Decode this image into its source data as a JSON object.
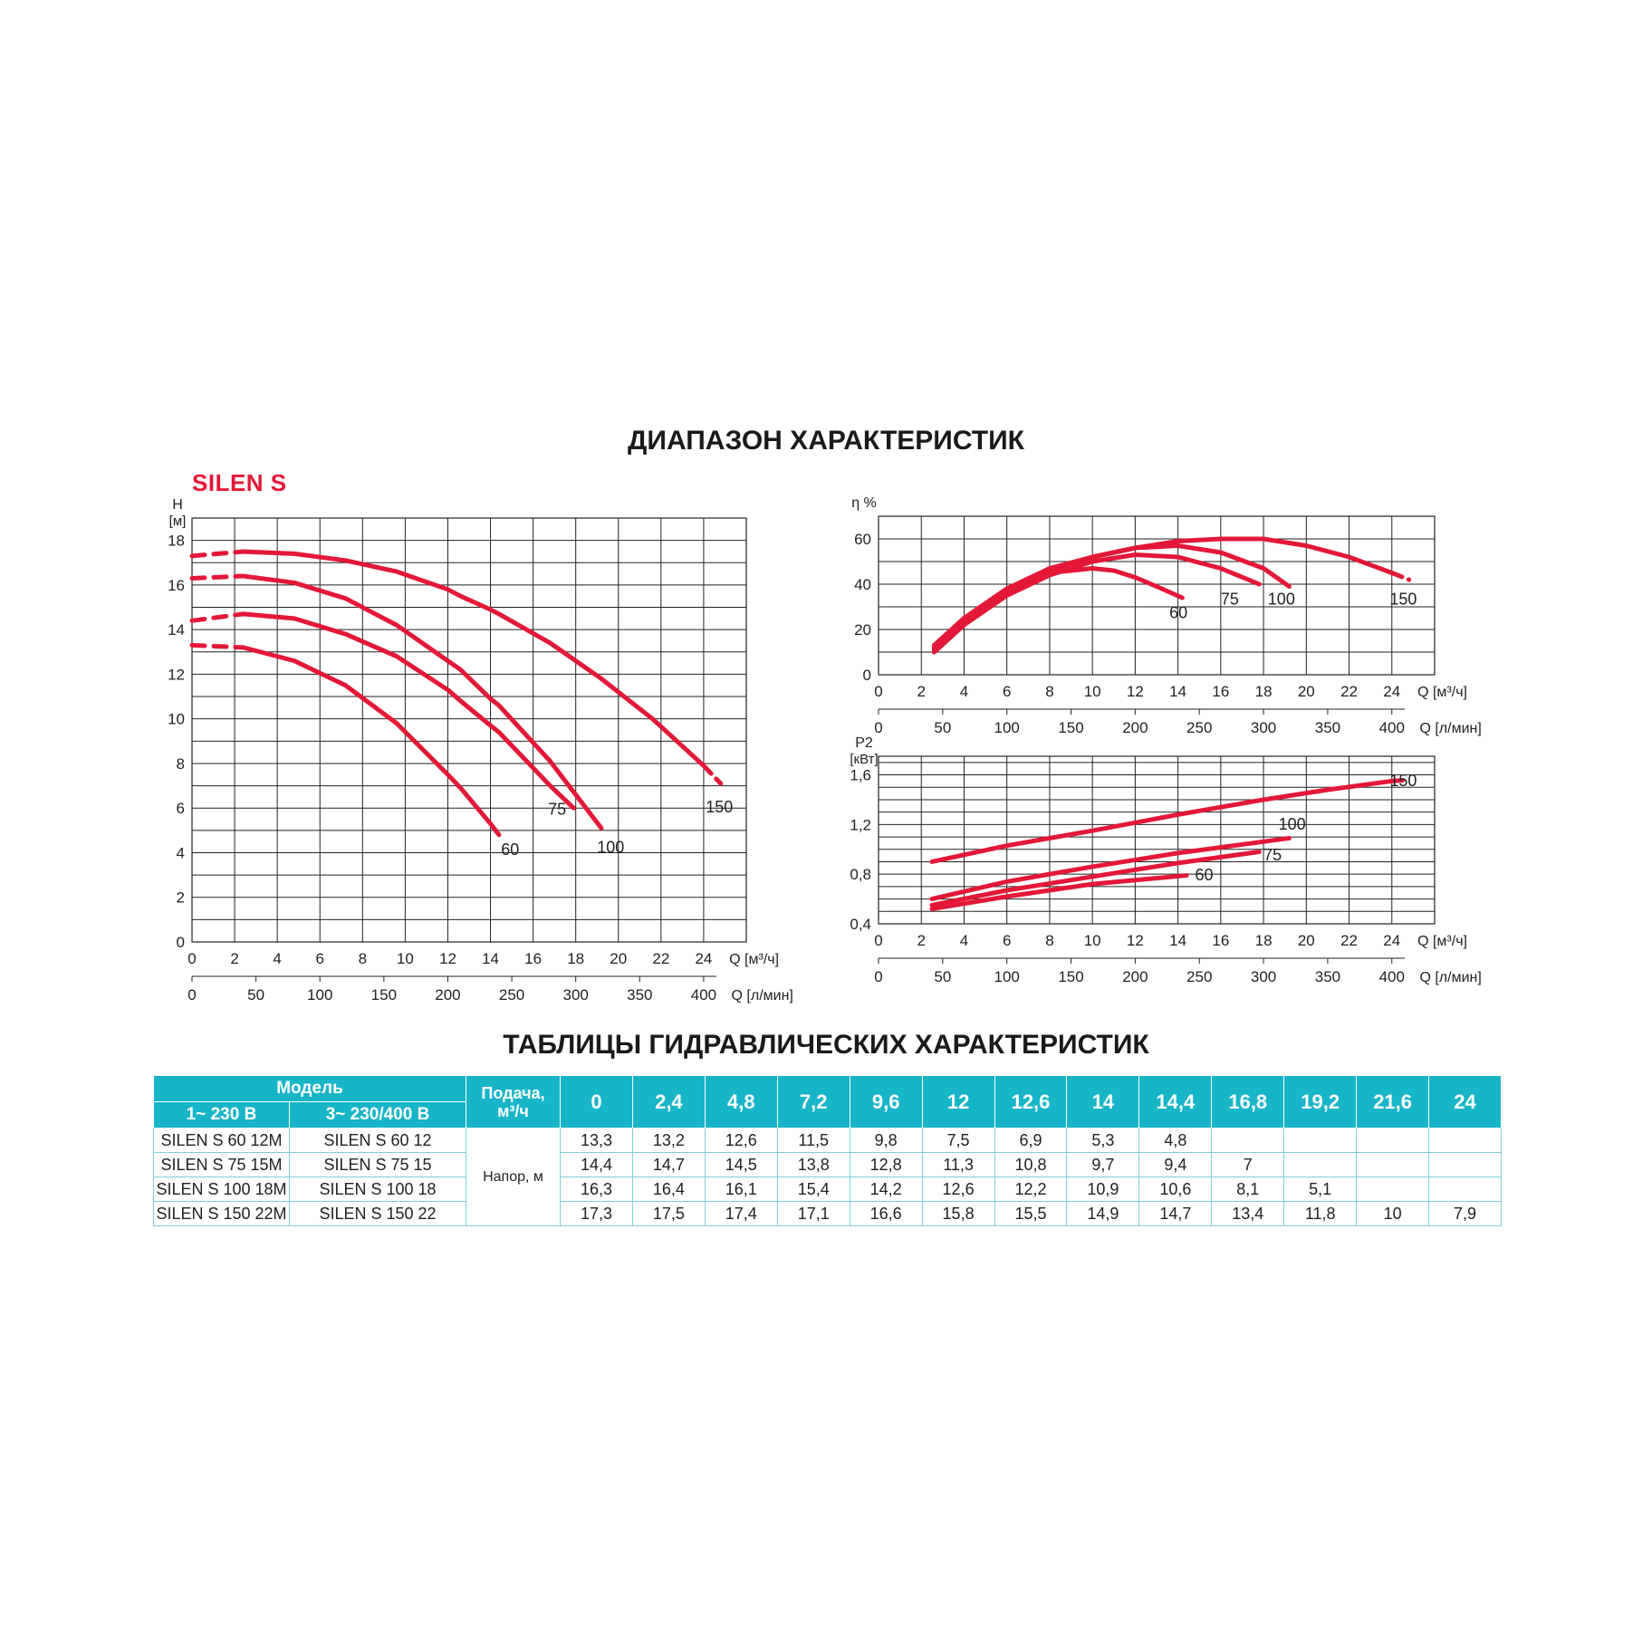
{
  "page": {
    "title_range": "ДИАПАЗОН ХАРАКТЕРИСТИК",
    "brand": "SILEN S",
    "title_table": "ТАБЛИЦЫ ГИДРАВЛИЧЕСКИХ ХАРАКТЕРИСТИК"
  },
  "colors": {
    "curve": "#e31837",
    "accent": "#17b5c8",
    "grid": "#222222"
  },
  "chart_data": [
    {
      "id": "head",
      "type": "line",
      "ylabel": "H",
      "yunit": "[м]",
      "xlabel": "Q [м³/ч]",
      "x2label": "Q [л/мин]",
      "xlim": [
        0,
        26
      ],
      "ylim": [
        0,
        19
      ],
      "xticks": [
        0,
        2,
        4,
        6,
        8,
        10,
        12,
        14,
        16,
        18,
        20,
        22,
        24
      ],
      "yticks": [
        0,
        2,
        4,
        6,
        8,
        10,
        12,
        14,
        16,
        18
      ],
      "x2ticks": [
        0,
        50,
        100,
        150,
        200,
        250,
        300,
        350,
        400
      ],
      "grid": true,
      "series": [
        {
          "name": "60",
          "dashed_to": 2.4,
          "x": [
            0,
            2.4,
            4.8,
            7.2,
            9.6,
            12,
            12.6,
            14,
            14.4
          ],
          "y": [
            13.3,
            13.2,
            12.6,
            11.5,
            9.8,
            7.5,
            6.9,
            5.3,
            4.8
          ],
          "label_at": [
            14.5,
            3.9
          ]
        },
        {
          "name": "75",
          "dashed_to": 2.4,
          "x": [
            0,
            2.4,
            4.8,
            7.2,
            9.6,
            12,
            12.6,
            14,
            14.4,
            16.8,
            17.9
          ],
          "y": [
            14.4,
            14.7,
            14.5,
            13.8,
            12.8,
            11.3,
            10.8,
            9.7,
            9.4,
            7,
            6.0
          ],
          "label_at": [
            16.7,
            5.7
          ]
        },
        {
          "name": "100",
          "dashed_to": 2.4,
          "x": [
            0,
            2.4,
            4.8,
            7.2,
            9.6,
            12,
            12.6,
            14,
            14.4,
            16.8,
            19.2
          ],
          "y": [
            16.3,
            16.4,
            16.1,
            15.4,
            14.2,
            12.6,
            12.2,
            10.9,
            10.6,
            8.1,
            5.1
          ],
          "label_at": [
            19.0,
            4.0
          ]
        },
        {
          "name": "150",
          "dashed_to": 2.4,
          "x": [
            0,
            2.4,
            4.8,
            7.2,
            9.6,
            12,
            12.6,
            14,
            14.4,
            16.8,
            19.2,
            21.6,
            24
          ],
          "y": [
            17.3,
            17.5,
            17.4,
            17.1,
            16.6,
            15.8,
            15.5,
            14.9,
            14.7,
            13.4,
            11.8,
            10,
            7.9
          ],
          "dashed_from": 24,
          "y_end": 7.1,
          "x_end": 24.8,
          "label_at": [
            24.1,
            5.8
          ]
        }
      ]
    },
    {
      "id": "efficiency",
      "type": "line",
      "ylabel": "η %",
      "xlabel": "Q [м³/ч]",
      "x2label": "Q [л/мин]",
      "xlim": [
        0,
        26
      ],
      "ylim": [
        0,
        70
      ],
      "xticks": [
        0,
        2,
        4,
        6,
        8,
        10,
        12,
        14,
        16,
        18,
        20,
        22,
        24
      ],
      "yticks": [
        0,
        20,
        40,
        60
      ],
      "x2ticks": [
        0,
        50,
        100,
        150,
        200,
        250,
        300,
        350,
        400
      ],
      "grid": true,
      "series": [
        {
          "name": "60",
          "x": [
            2.6,
            4,
            6,
            8,
            10,
            11,
            12,
            13,
            14.2
          ],
          "y": [
            12,
            25,
            38,
            45,
            47,
            46,
            43,
            39,
            34
          ],
          "label_at": [
            13.6,
            25
          ]
        },
        {
          "name": "75",
          "x": [
            2.6,
            4,
            6,
            8,
            10,
            12,
            14,
            16,
            17.8
          ],
          "y": [
            10,
            22,
            35,
            44,
            50,
            53,
            52,
            47,
            40
          ],
          "label_at": [
            16.0,
            31
          ]
        },
        {
          "name": "100",
          "x": [
            2.6,
            4,
            6,
            8,
            10,
            12,
            14,
            16,
            18,
            19.2
          ],
          "y": [
            11,
            23,
            36,
            46,
            52,
            56,
            57,
            54,
            47,
            39
          ],
          "label_at": [
            18.2,
            31
          ]
        },
        {
          "name": "150",
          "x": [
            2.6,
            4,
            6,
            8,
            10,
            12,
            14,
            16,
            18,
            20,
            22,
            24,
            24.8
          ],
          "y": [
            13,
            25,
            38,
            47,
            52,
            56,
            59,
            60,
            60,
            57,
            52,
            45,
            42
          ],
          "dashed_from": 24,
          "label_at": [
            23.9,
            31
          ]
        }
      ]
    },
    {
      "id": "power",
      "type": "line",
      "ylabel": "P2",
      "yunit": "[кВт]",
      "xlabel": "Q [м³/ч]",
      "x2label": "Q [л/мин]",
      "xlim": [
        0,
        26
      ],
      "ylim": [
        0.4,
        1.75
      ],
      "xticks": [
        0,
        2,
        4,
        6,
        8,
        10,
        12,
        14,
        16,
        18,
        20,
        22,
        24
      ],
      "yticks": [
        0.4,
        0.8,
        1.2,
        1.6
      ],
      "ytick_labels": [
        "0,4",
        "0,8",
        "1,2",
        "1,6"
      ],
      "x2ticks": [
        0,
        50,
        100,
        150,
        200,
        250,
        300,
        350,
        400
      ],
      "grid": true,
      "series": [
        {
          "name": "60",
          "x": [
            2.5,
            6,
            10,
            14.4
          ],
          "y": [
            0.52,
            0.62,
            0.72,
            0.79
          ],
          "label_at": [
            14.8,
            0.75
          ]
        },
        {
          "name": "75",
          "x": [
            2.5,
            6,
            10,
            14,
            17.8
          ],
          "y": [
            0.55,
            0.67,
            0.78,
            0.89,
            0.98
          ],
          "label_at": [
            18.0,
            0.91
          ]
        },
        {
          "name": "100",
          "x": [
            2.5,
            6,
            10,
            14,
            19.2
          ],
          "y": [
            0.6,
            0.74,
            0.86,
            0.97,
            1.09
          ],
          "label_at": [
            18.7,
            1.16
          ]
        },
        {
          "name": "150",
          "x": [
            2.5,
            6,
            10,
            14,
            18,
            21,
            24,
            24.8
          ],
          "y": [
            0.9,
            1.03,
            1.15,
            1.28,
            1.4,
            1.48,
            1.55,
            1.56
          ],
          "dashed_from": 24,
          "label_at": [
            23.9,
            1.51
          ]
        }
      ]
    }
  ],
  "table": {
    "model_header": "Модель",
    "col_1ph": "1~ 230 В",
    "col_3ph": "3~ 230/400 В",
    "feed_header_1": "Подача,",
    "feed_header_2": "м³/ч",
    "row_label": "Напор, м",
    "flows": [
      "0",
      "2,4",
      "4,8",
      "7,2",
      "9,6",
      "12",
      "12,6",
      "14",
      "14,4",
      "16,8",
      "19,2",
      "21,6",
      "24"
    ],
    "rows": [
      {
        "m1": "SILEN S 60 12M",
        "m3": "SILEN S 60 12",
        "values": [
          "13,3",
          "13,2",
          "12,6",
          "11,5",
          "9,8",
          "7,5",
          "6,9",
          "5,3",
          "4,8",
          "",
          "",
          "",
          ""
        ]
      },
      {
        "m1": "SILEN S 75 15M",
        "m3": "SILEN S 75 15",
        "values": [
          "14,4",
          "14,7",
          "14,5",
          "13,8",
          "12,8",
          "11,3",
          "10,8",
          "9,7",
          "9,4",
          "7",
          "",
          "",
          ""
        ]
      },
      {
        "m1": "SILEN S 100 18M",
        "m3": "SILEN S 100 18",
        "values": [
          "16,3",
          "16,4",
          "16,1",
          "15,4",
          "14,2",
          "12,6",
          "12,2",
          "10,9",
          "10,6",
          "8,1",
          "5,1",
          "",
          ""
        ]
      },
      {
        "m1": "SILEN S 150 22M",
        "m3": "SILEN S 150 22",
        "values": [
          "17,3",
          "17,5",
          "17,4",
          "17,1",
          "16,6",
          "15,8",
          "15,5",
          "14,9",
          "14,7",
          "13,4",
          "11,8",
          "10",
          "7,9"
        ]
      }
    ]
  }
}
